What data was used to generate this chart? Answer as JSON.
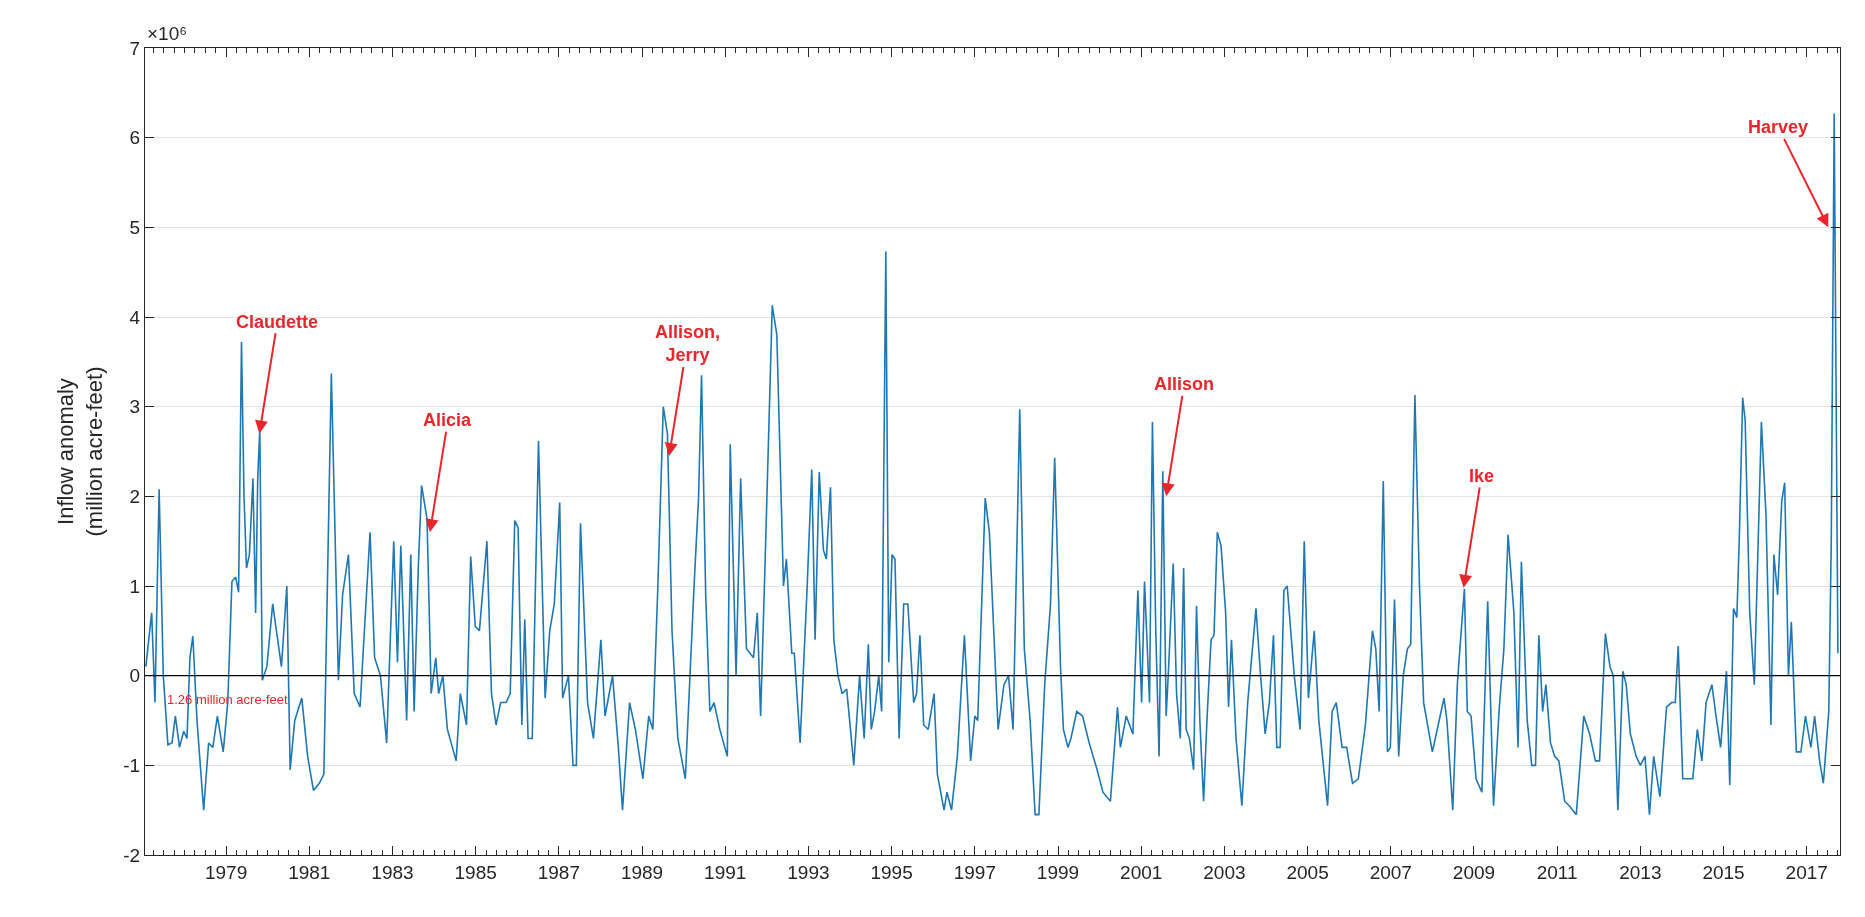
{
  "chart_data": {
    "type": "line",
    "ylabel": "Inflow anomaly\n(million acre-feet)",
    "xlim": [
      1977.05,
      2017.8
    ],
    "ylim": [
      -2,
      7
    ],
    "xticks": [
      1979,
      1981,
      1983,
      1985,
      1987,
      1989,
      1991,
      1993,
      1995,
      1997,
      1999,
      2001,
      2003,
      2005,
      2007,
      2009,
      2011,
      2013,
      2015,
      2017
    ],
    "yticks": [
      -2,
      -1,
      0,
      1,
      2,
      3,
      4,
      5,
      6,
      7
    ],
    "grid": "y",
    "marker": "none",
    "line_style": "solid",
    "ref_lines": [
      {
        "axis": "y",
        "value": 0,
        "label": "1.26 million acre-feet",
        "color": "#000000"
      }
    ],
    "annotations": [
      "×10⁶",
      {
        "text": "Claudette",
        "x": 1979.8,
        "y": 2.7
      },
      {
        "text": "Alicia",
        "x": 1983.9,
        "y": 1.6
      },
      {
        "text": "Allison,\nJerry",
        "x": 1989.65,
        "y": 2.45
      },
      {
        "text": "Allison",
        "x": 2001.6,
        "y": 2.0
      },
      {
        "text": "Ike",
        "x": 2008.75,
        "y": 0.98
      },
      {
        "text": "Harvey",
        "x": 2017.52,
        "y": 5.0
      }
    ],
    "series": [
      {
        "color": "#1f77b4",
        "x": [
          1977.07,
          1977.21,
          1977.29,
          1977.39,
          1977.49,
          1977.6,
          1977.7,
          1977.78,
          1977.88,
          1977.98,
          1978.06,
          1978.13,
          1978.2,
          1978.3,
          1978.46,
          1978.58,
          1978.68,
          1978.79,
          1978.93,
          1979.04,
          1979.14,
          1979.23,
          1979.3,
          1979.37,
          1979.43,
          1979.49,
          1979.56,
          1979.645,
          1979.71,
          1979.76,
          1979.81,
          1979.87,
          1979.98,
          1980.12,
          1980.33,
          1980.46,
          1980.54,
          1980.65,
          1980.82,
          1980.96,
          1981.1,
          1981.24,
          1981.35,
          1981.53,
          1981.7,
          1981.8,
          1981.94,
          1982.08,
          1982.22,
          1982.46,
          1982.57,
          1982.71,
          1982.86,
          1983.03,
          1983.12,
          1983.2,
          1983.34,
          1983.44,
          1983.52,
          1983.62,
          1983.7,
          1983.83,
          1983.93,
          1984.04,
          1984.11,
          1984.21,
          1984.32,
          1984.53,
          1984.63,
          1984.78,
          1984.88,
          1984.99,
          1985.09,
          1985.27,
          1985.38,
          1985.49,
          1985.6,
          1985.73,
          1985.83,
          1985.94,
          1986.02,
          1986.11,
          1986.18,
          1986.26,
          1986.36,
          1986.51,
          1986.67,
          1986.78,
          1986.89,
          1987.02,
          1987.09,
          1987.23,
          1987.34,
          1987.42,
          1987.52,
          1987.69,
          1987.83,
          1988.01,
          1988.11,
          1988.29,
          1988.43,
          1988.53,
          1988.7,
          1988.84,
          1989.02,
          1989.16,
          1989.26,
          1989.38,
          1989.51,
          1989.61,
          1989.72,
          1989.86,
          1990.04,
          1990.25,
          1990.36,
          1990.43,
          1990.53,
          1990.63,
          1990.73,
          1990.87,
          1991.05,
          1991.12,
          1991.26,
          1991.37,
          1991.51,
          1991.68,
          1991.77,
          1991.85,
          1991.96,
          1992.13,
          1992.24,
          1992.4,
          1992.47,
          1992.6,
          1992.66,
          1992.8,
          1992.97,
          1993.08,
          1993.16,
          1993.26,
          1993.36,
          1993.43,
          1993.53,
          1993.61,
          1993.71,
          1993.81,
          1993.92,
          1994.09,
          1994.23,
          1994.34,
          1994.44,
          1994.51,
          1994.59,
          1994.69,
          1994.76,
          1994.86,
          1994.93,
          1995.01,
          1995.08,
          1995.18,
          1995.29,
          1995.39,
          1995.53,
          1995.6,
          1995.68,
          1995.77,
          1995.88,
          1996.02,
          1996.1,
          1996.26,
          1996.33,
          1996.44,
          1996.58,
          1996.75,
          1996.9,
          1997.0,
          1997.07,
          1997.25,
          1997.35,
          1997.56,
          1997.7,
          1997.81,
          1997.92,
          1998.08,
          1998.19,
          1998.33,
          1998.45,
          1998.54,
          1998.68,
          1998.82,
          1998.92,
          1999.06,
          1999.13,
          1999.24,
          1999.31,
          1999.45,
          1999.59,
          1999.75,
          1999.94,
          2000.08,
          2000.26,
          2000.43,
          2000.5,
          2000.64,
          2000.8,
          2000.92,
          2001.01,
          2001.08,
          2001.2,
          2001.27,
          2001.35,
          2001.43,
          2001.52,
          2001.6,
          2001.66,
          2001.77,
          2001.85,
          2001.94,
          2002.02,
          2002.08,
          2002.16,
          2002.26,
          2002.33,
          2002.41,
          2002.5,
          2002.58,
          2002.68,
          2002.75,
          2002.83,
          2002.92,
          2003.03,
          2003.1,
          2003.17,
          2003.28,
          2003.42,
          2003.56,
          2003.76,
          2003.87,
          2003.98,
          2004.08,
          2004.18,
          2004.26,
          2004.34,
          2004.43,
          2004.51,
          2004.68,
          2004.82,
          2004.92,
          2005.02,
          2005.16,
          2005.27,
          2005.48,
          2005.59,
          2005.69,
          2005.83,
          2005.94,
          2006.08,
          2006.22,
          2006.39,
          2006.56,
          2006.64,
          2006.72,
          2006.82,
          2006.92,
          2006.99,
          2007.09,
          2007.19,
          2007.3,
          2007.4,
          2007.48,
          2007.58,
          2007.69,
          2007.79,
          2008.0,
          2008.14,
          2008.28,
          2008.35,
          2008.49,
          2008.6,
          2008.67,
          2008.77,
          2008.84,
          2008.93,
          2009.05,
          2009.19,
          2009.33,
          2009.47,
          2009.61,
          2009.72,
          2009.82,
          2009.96,
          2010.06,
          2010.14,
          2010.28,
          2010.39,
          2010.48,
          2010.56,
          2010.65,
          2010.73,
          2010.84,
          2010.94,
          2011.04,
          2011.18,
          2011.29,
          2011.46,
          2011.64,
          2011.78,
          2011.92,
          2012.02,
          2012.16,
          2012.27,
          2012.35,
          2012.46,
          2012.58,
          2012.66,
          2012.76,
          2012.9,
          2013.0,
          2013.11,
          2013.22,
          2013.32,
          2013.47,
          2013.63,
          2013.75,
          2013.84,
          2013.91,
          2014.02,
          2014.16,
          2014.26,
          2014.37,
          2014.48,
          2014.58,
          2014.72,
          2014.82,
          2014.93,
          2015.07,
          2015.15,
          2015.24,
          2015.32,
          2015.38,
          2015.46,
          2015.52,
          2015.63,
          2015.74,
          2015.91,
          2016.02,
          2016.14,
          2016.21,
          2016.3,
          2016.4,
          2016.47,
          2016.56,
          2016.63,
          2016.75,
          2016.86,
          2016.97,
          2017.1,
          2017.19,
          2017.31,
          2017.4,
          2017.53,
          2017.59,
          2017.66,
          2017.75
        ],
        "values": [
          0.1,
          0.7,
          -0.3,
          2.08,
          0.0,
          -0.77,
          -0.75,
          -0.45,
          -0.8,
          -0.62,
          -0.7,
          0.2,
          0.44,
          -0.5,
          -1.5,
          -0.75,
          -0.8,
          -0.45,
          -0.85,
          -0.3,
          1.05,
          1.1,
          0.93,
          3.72,
          2.0,
          1.2,
          1.35,
          2.2,
          0.7,
          2.2,
          2.75,
          -0.05,
          0.1,
          0.8,
          0.1,
          1.0,
          -1.05,
          -0.5,
          -0.25,
          -0.9,
          -1.28,
          -1.2,
          -1.1,
          3.37,
          -0.05,
          0.9,
          1.35,
          -0.2,
          -0.35,
          1.6,
          0.2,
          0.0,
          -0.75,
          1.5,
          0.15,
          1.45,
          -0.5,
          1.35,
          -0.4,
          1.2,
          2.12,
          1.75,
          -0.2,
          0.2,
          -0.2,
          0.0,
          -0.6,
          -0.95,
          -0.2,
          -0.55,
          1.33,
          0.55,
          0.5,
          1.5,
          -0.2,
          -0.55,
          -0.3,
          -0.3,
          -0.2,
          1.73,
          1.65,
          -0.55,
          0.63,
          -0.7,
          -0.7,
          2.62,
          -0.25,
          0.5,
          0.8,
          1.93,
          -0.25,
          0.0,
          -1.0,
          -1.0,
          1.7,
          -0.3,
          -0.7,
          0.4,
          -0.45,
          0.0,
          -0.8,
          -1.5,
          -0.3,
          -0.6,
          -1.15,
          -0.45,
          -0.6,
          1.0,
          3.0,
          2.7,
          0.5,
          -0.7,
          -1.15,
          1.0,
          2.0,
          3.35,
          0.9,
          -0.4,
          -0.3,
          -0.6,
          -0.9,
          2.58,
          0.0,
          2.2,
          0.3,
          0.2,
          0.7,
          -0.45,
          1.3,
          4.13,
          3.8,
          1.0,
          1.3,
          0.25,
          0.25,
          -0.75,
          1.0,
          2.3,
          0.4,
          2.27,
          1.4,
          1.3,
          2.1,
          0.4,
          0.0,
          -0.2,
          -0.15,
          -1.0,
          0.0,
          -0.7,
          0.35,
          -0.6,
          -0.4,
          0.0,
          -0.4,
          4.73,
          0.15,
          1.35,
          1.3,
          -0.7,
          0.8,
          0.8,
          -0.3,
          -0.2,
          0.45,
          -0.55,
          -0.6,
          -0.2,
          -1.1,
          -1.5,
          -1.3,
          -1.5,
          -0.9,
          0.45,
          -0.95,
          -0.45,
          -0.5,
          1.98,
          1.6,
          -0.6,
          -0.1,
          0.0,
          -0.6,
          2.97,
          0.3,
          -0.5,
          -1.55,
          -1.55,
          -0.1,
          0.8,
          2.43,
          0.1,
          -0.6,
          -0.8,
          -0.7,
          -0.4,
          -0.45,
          -0.75,
          -1.05,
          -1.3,
          -1.4,
          -0.35,
          -0.8,
          -0.45,
          -0.65,
          0.95,
          -0.3,
          1.05,
          -0.3,
          2.83,
          0.5,
          -0.9,
          2.28,
          -0.45,
          0.1,
          1.25,
          -0.2,
          -0.7,
          1.2,
          -0.6,
          -0.7,
          -1.05,
          0.78,
          -0.5,
          -1.4,
          -0.5,
          0.4,
          0.45,
          1.6,
          1.45,
          0.7,
          -0.35,
          0.4,
          -0.7,
          -1.45,
          -0.3,
          0.75,
          0.0,
          -0.65,
          -0.3,
          0.45,
          -0.8,
          -0.8,
          0.95,
          1.0,
          0.0,
          -0.6,
          1.5,
          -0.25,
          0.5,
          -0.5,
          -1.45,
          -0.4,
          -0.3,
          -0.8,
          -0.8,
          -1.2,
          -1.15,
          -0.55,
          0.5,
          0.3,
          -0.4,
          2.17,
          -0.85,
          -0.8,
          0.85,
          -0.9,
          0.0,
          0.3,
          0.35,
          3.13,
          1.0,
          -0.3,
          -0.85,
          -0.55,
          -0.25,
          -0.5,
          -1.5,
          -0.1,
          0.35,
          0.97,
          -0.4,
          -0.45,
          -1.15,
          -1.3,
          0.83,
          -1.45,
          -0.35,
          0.3,
          1.57,
          0.7,
          -0.8,
          1.27,
          -0.5,
          -1.0,
          -1.0,
          0.45,
          -0.4,
          -0.1,
          -0.75,
          -0.9,
          -0.95,
          -1.4,
          -1.45,
          -1.55,
          -0.45,
          -0.65,
          -0.95,
          -0.95,
          0.47,
          0.1,
          0.0,
          -1.5,
          0.05,
          -0.1,
          -0.65,
          -0.9,
          -1.0,
          -0.9,
          -1.55,
          -0.9,
          -1.35,
          -0.35,
          -0.3,
          -0.3,
          0.33,
          -1.15,
          -1.15,
          -1.15,
          -0.6,
          -0.95,
          -0.3,
          -0.1,
          -0.45,
          -0.8,
          0.05,
          -1.22,
          0.75,
          0.65,
          1.55,
          3.1,
          2.85,
          0.7,
          -0.1,
          2.83,
          1.8,
          -0.55,
          1.35,
          0.9,
          1.95,
          2.15,
          0.0,
          0.6,
          -0.85,
          -0.85,
          -0.45,
          -0.8,
          -0.45,
          -0.95,
          -1.2,
          -0.4,
          1.5,
          6.27,
          0.25
        ]
      }
    ]
  }
}
